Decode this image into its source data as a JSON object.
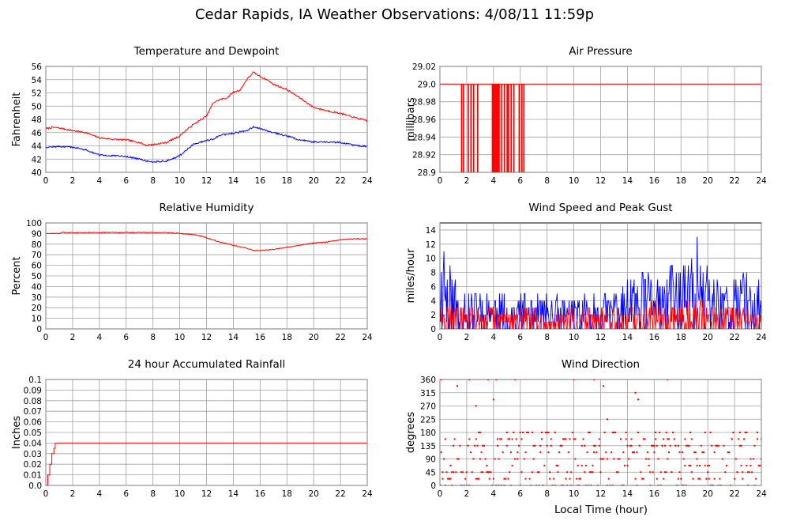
{
  "title": "Cedar Rapids, IA Weather Observations: 4/08/11 11:59p",
  "xlabel": "Local Time (hour)",
  "colors": {
    "red": "#ff0000",
    "blue": "#0000ff",
    "grid": "#a0a0a0"
  },
  "chart_data": [
    {
      "id": "temp",
      "type": "line",
      "title": "Temperature and Dewpoint",
      "ylabel": "Fahrenheit",
      "xlim": [
        0,
        24
      ],
      "ylim": [
        40,
        56
      ],
      "xticks": [
        0,
        2,
        4,
        6,
        8,
        10,
        12,
        14,
        16,
        18,
        20,
        22,
        24
      ],
      "yticks": [
        40,
        42,
        44,
        46,
        48,
        50,
        52,
        54,
        56
      ],
      "ytick_labels": [
        "40",
        "42",
        "44",
        "46",
        "48",
        "50",
        "52",
        "54",
        "56"
      ],
      "grid": true,
      "series": [
        {
          "color": "red",
          "x": [
            0,
            0.5,
            1,
            2,
            3,
            4,
            5,
            6,
            7,
            7.5,
            8,
            9,
            10,
            10.5,
            11,
            12,
            12.5,
            13,
            13.5,
            14,
            14.5,
            15,
            15.5,
            16,
            16.5,
            17,
            18,
            19,
            20,
            21,
            22,
            23,
            24
          ],
          "y": [
            46.6,
            46.8,
            46.7,
            46.3,
            46.0,
            45.2,
            45.0,
            44.9,
            44.5,
            44.1,
            44.2,
            44.5,
            45.5,
            46.4,
            47.2,
            48.5,
            50.5,
            51.0,
            51.2,
            52.1,
            52.4,
            54.0,
            55.1,
            54.5,
            54.0,
            53.3,
            52.5,
            51.2,
            49.8,
            49.3,
            48.9,
            48.3,
            47.8
          ]
        },
        {
          "color": "blue",
          "x": [
            0,
            1,
            2,
            3,
            4,
            5,
            6,
            7,
            7.5,
            8,
            9,
            10,
            10.5,
            11,
            12,
            12.5,
            13,
            14,
            15,
            15.5,
            16,
            17,
            18,
            19,
            20,
            21,
            22,
            23,
            24
          ],
          "y": [
            43.8,
            43.9,
            43.8,
            43.4,
            42.6,
            42.5,
            42.4,
            42.0,
            41.7,
            41.6,
            41.7,
            42.5,
            43.4,
            44.2,
            44.8,
            45.0,
            45.6,
            45.9,
            46.3,
            46.9,
            46.6,
            46.0,
            45.5,
            44.9,
            44.6,
            44.6,
            44.5,
            44.1,
            43.9
          ]
        }
      ]
    },
    {
      "id": "pressure",
      "type": "line",
      "title": "Air Pressure",
      "ylabel": "millibars",
      "xlim": [
        0,
        24
      ],
      "ylim": [
        28.9,
        29.02
      ],
      "xticks": [
        0,
        2,
        4,
        6,
        8,
        10,
        12,
        14,
        16,
        18,
        20,
        22,
        24
      ],
      "yticks": [
        28.9,
        28.92,
        28.94,
        28.96,
        28.98,
        29.0,
        29.02
      ],
      "ytick_labels": [
        "28.9",
        "28.92",
        "28.94",
        "28.96",
        "28.98",
        "29.0",
        "29.02"
      ],
      "grid": true,
      "series": [
        {
          "color": "red",
          "baseline": 29.0,
          "low": 28.9,
          "drop_times": [
            1.6,
            1.75,
            2.1,
            2.3,
            2.5,
            2.8,
            3.9,
            4.0,
            4.1,
            4.2,
            4.3,
            4.4,
            4.6,
            4.8,
            5.0,
            5.1,
            5.3,
            5.5,
            5.9,
            6.1,
            6.25
          ]
        }
      ]
    },
    {
      "id": "humidity",
      "type": "line",
      "title": "Relative Humidity",
      "ylabel": "Percent",
      "xlim": [
        0,
        24
      ],
      "ylim": [
        0,
        100
      ],
      "xticks": [
        0,
        2,
        4,
        6,
        8,
        10,
        12,
        14,
        16,
        18,
        20,
        22,
        24
      ],
      "yticks": [
        0,
        10,
        20,
        30,
        40,
        50,
        60,
        70,
        80,
        90,
        100
      ],
      "ytick_labels": [
        "0",
        "10",
        "20",
        "30",
        "40",
        "50",
        "60",
        "70",
        "80",
        "90",
        "100"
      ],
      "grid": true,
      "series": [
        {
          "color": "red",
          "x": [
            0,
            1,
            1.2,
            2,
            4,
            6,
            8,
            9,
            10,
            11,
            11.5,
            12,
            12.5,
            13,
            14,
            15,
            15.5,
            16,
            17,
            18,
            19,
            20,
            21,
            22,
            23,
            24
          ],
          "y": [
            90,
            90,
            91,
            91,
            91,
            91,
            91,
            91,
            90,
            89,
            88,
            86,
            84,
            82,
            79,
            76,
            74,
            74,
            75,
            77,
            79,
            81,
            82,
            84,
            85,
            85
          ]
        }
      ]
    },
    {
      "id": "wind",
      "type": "line",
      "title": "Wind Speed and Peak Gust",
      "ylabel": "miles/hour",
      "xlim": [
        0,
        24
      ],
      "ylim": [
        0,
        15
      ],
      "xticks": [
        0,
        2,
        4,
        6,
        8,
        10,
        12,
        14,
        16,
        18,
        20,
        22,
        24
      ],
      "yticks": [
        0,
        2,
        4,
        6,
        8,
        10,
        12,
        14
      ],
      "ytick_labels": [
        "0",
        "2",
        "4",
        "6",
        "8",
        "10",
        "12",
        "14"
      ],
      "grid": true,
      "series": [
        {
          "color": "blue",
          "sample_step": 0.05,
          "seed": 11,
          "hourly_level": [
            6.0,
            4.5,
            3.5,
            3.3,
            3.2,
            3.0,
            3.0,
            3.0,
            3.0,
            3.0,
            3.0,
            3.0,
            3.2,
            3.5,
            4.5,
            5.0,
            5.5,
            6.0,
            6.0,
            6.5,
            5.0,
            5.5,
            5.0,
            4.5,
            4.5
          ],
          "peak_x": [
            0.3,
            19.2
          ],
          "peak_y": [
            11,
            13
          ]
        },
        {
          "color": "red",
          "sample_step": 0.05,
          "seed": 29,
          "hourly_level": [
            2.5,
            2.2,
            2.0,
            2.0,
            1.8,
            1.8,
            1.8,
            1.8,
            1.8,
            1.8,
            1.8,
            1.8,
            1.8,
            2.0,
            2.2,
            2.4,
            2.5,
            2.6,
            2.6,
            2.5,
            2.2,
            2.2,
            2.0,
            1.8,
            1.8
          ]
        }
      ]
    },
    {
      "id": "rain",
      "type": "line",
      "title": "24 hour Accumulated Rainfall",
      "ylabel": "Inches",
      "xlim": [
        0,
        24
      ],
      "ylim": [
        0,
        0.1
      ],
      "xticks": [
        0,
        2,
        4,
        6,
        8,
        10,
        12,
        14,
        16,
        18,
        20,
        22,
        24
      ],
      "yticks": [
        0,
        0.01,
        0.02,
        0.03,
        0.04,
        0.05,
        0.06,
        0.07,
        0.08,
        0.09,
        0.1
      ],
      "ytick_labels": [
        "0.0",
        "0.01",
        "0.02",
        "0.03",
        "0.04",
        "0.05",
        "0.06",
        "0.07",
        "0.08",
        "0.09",
        "0.1"
      ],
      "grid": true,
      "series": [
        {
          "color": "red",
          "step": true,
          "x": [
            0,
            0.1,
            0.15,
            0.25,
            0.3,
            0.4,
            0.45,
            0.55,
            0.6,
            0.7,
            24
          ],
          "y": [
            0,
            0,
            0.01,
            0.01,
            0.02,
            0.02,
            0.03,
            0.03,
            0.035,
            0.04,
            0.04
          ]
        }
      ]
    },
    {
      "id": "winddir",
      "type": "scatter",
      "title": "Wind Direction",
      "ylabel": "degrees",
      "xlim": [
        0,
        24
      ],
      "ylim": [
        0,
        360
      ],
      "xticks": [
        0,
        2,
        4,
        6,
        8,
        10,
        12,
        14,
        16,
        18,
        20,
        22,
        24
      ],
      "yticks": [
        0,
        45,
        90,
        135,
        180,
        225,
        270,
        315,
        360
      ],
      "ytick_labels": [
        "0",
        "45",
        "90",
        "135",
        "180",
        "225",
        "270",
        "315",
        "360"
      ],
      "grid": true,
      "series": [
        {
          "color": "red",
          "sample_step": 0.1,
          "seed": 53,
          "levels": [
            0,
            22.5,
            45,
            67.5,
            90,
            112.5,
            135,
            157.5,
            180
          ],
          "outliers_x": [
            1.3,
            2.2,
            2.7,
            3.6,
            4.0,
            4.2,
            5.6,
            10.0,
            11.5,
            12.2,
            12.5,
            14.6,
            14.8,
            17.0,
            0.1
          ],
          "outliers_y": [
            338,
            360,
            270,
            360,
            292,
            360,
            360,
            360,
            360,
            338,
            225,
            315,
            292,
            360,
            360
          ]
        }
      ]
    }
  ]
}
